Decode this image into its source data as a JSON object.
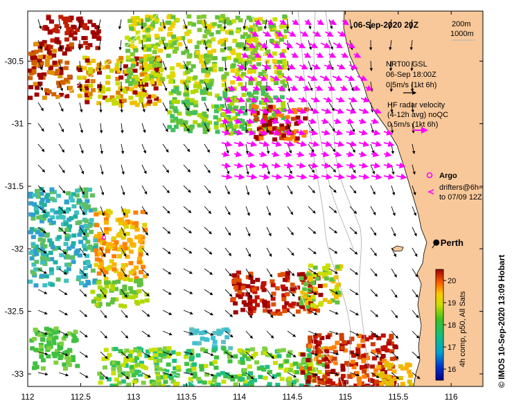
{
  "map": {
    "title": "06-Sep-2020 20Z",
    "depth_contours": [
      "200m",
      "1000m"
    ],
    "axes": {
      "lon_range": [
        112,
        116.3
      ],
      "lat_range": [
        -33.1,
        -30.1
      ],
      "x_ticks": [
        "112",
        "112.5",
        "113",
        "113.5",
        "114",
        "114.5",
        "115",
        "115.5",
        "116"
      ],
      "y_ticks": [
        "-30.5",
        "-31",
        "-31.5",
        "-32",
        "-32.5",
        "-33"
      ]
    },
    "wind_legend": {
      "line1": "NRT00 GSL",
      "line2": "06-Sep 18:00Z",
      "line3": "0.5m/s (1kt 6h)"
    },
    "radar_legend": {
      "line1": "HF radar velocity",
      "line2": "(4-12h avg) noQC",
      "line3": "0.5m/s (1kt 6h)"
    },
    "argo_label": "Argo",
    "drifters": {
      "line1": "drifters@6h–",
      "line2": "to 07/09 12Z"
    },
    "city": {
      "name": "Perth",
      "lon": 115.86,
      "lat": -31.95
    },
    "colorbar": {
      "ticks": [
        "16",
        "17",
        "18",
        "19",
        "20"
      ],
      "range": [
        15.5,
        20.5
      ],
      "label": "4h comp, p50, All Sats"
    },
    "credit": "© IMOS 10-Sep-2020 13:09 Hobart",
    "colors": {
      "land": "#f8c89a",
      "radar_arrow": "#ff00ff",
      "wind_arrow": "#000000",
      "argo": "#ff00ff"
    }
  }
}
